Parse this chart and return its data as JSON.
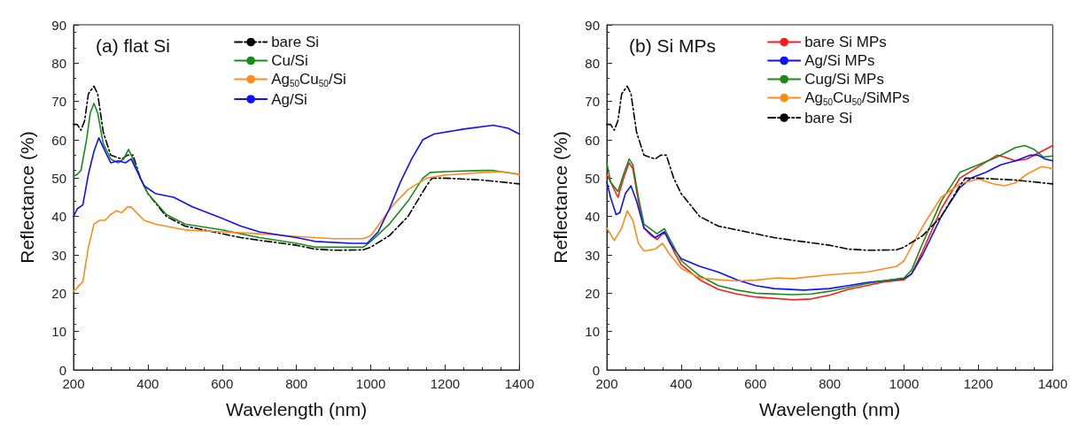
{
  "chart_data": [
    {
      "type": "line",
      "title": "(a) flat Si",
      "xlabel": "Wavelength (nm)",
      "ylabel": "Reflectance (%)",
      "xlim": [
        200,
        1400
      ],
      "xticks": [
        200,
        400,
        600,
        800,
        1000,
        1200,
        1400
      ],
      "ylim": [
        0,
        90
      ],
      "yticks": [
        0,
        10,
        20,
        30,
        40,
        50,
        60,
        70,
        80,
        90
      ],
      "grid": false,
      "legend": "top",
      "marker": "none",
      "series": [
        {
          "name": "bare Si",
          "color": "#000000",
          "line_style": "dashed",
          "x": [
            200,
            210,
            220,
            230,
            240,
            255,
            265,
            280,
            300,
            330,
            345,
            360,
            380,
            400,
            450,
            500,
            600,
            650,
            700,
            800,
            850,
            900,
            980,
            1000,
            1050,
            1100,
            1150,
            1165,
            1200,
            1300,
            1400
          ],
          "values": [
            64,
            64,
            62.5,
            65,
            72,
            74,
            72,
            62,
            56,
            55,
            56,
            56,
            50,
            46,
            40,
            37.5,
            35.5,
            34.5,
            33.8,
            32.5,
            31.5,
            31.2,
            31.3,
            32,
            35,
            40,
            48,
            50,
            50,
            49.5,
            48.5
          ]
        },
        {
          "name": "Cu/Si",
          "color": "#1a8a1a",
          "line_style": "solid",
          "x": [
            200,
            210,
            220,
            235,
            245,
            255,
            265,
            280,
            300,
            320,
            335,
            348,
            360,
            380,
            400,
            450,
            500,
            600,
            650,
            700,
            800,
            850,
            950,
            980,
            1000,
            1050,
            1100,
            1140,
            1160,
            1200,
            1300,
            1330,
            1400
          ],
          "values": [
            50.5,
            51,
            52,
            60,
            67,
            69.5,
            67,
            59,
            55,
            54,
            55,
            57.5,
            55,
            50,
            46,
            40.5,
            38,
            36.5,
            35.5,
            34.5,
            33,
            32,
            32,
            32,
            33.5,
            38,
            44,
            50,
            51.5,
            51.7,
            52,
            52,
            51
          ]
        },
        {
          "name": "Ag$_{50}$Cu$_{50}$/Si",
          "color": "#ff8c1a",
          "line_style": "solid",
          "x": [
            200,
            210,
            225,
            240,
            255,
            270,
            285,
            300,
            315,
            330,
            345,
            355,
            370,
            390,
            420,
            500,
            600,
            700,
            800,
            900,
            980,
            1000,
            1030,
            1060,
            1100,
            1150,
            1200,
            1300,
            1350,
            1400
          ],
          "values": [
            20.5,
            21.5,
            23,
            32,
            38,
            39,
            39,
            40.5,
            41.5,
            41,
            42.5,
            42.5,
            41,
            39,
            38,
            36.5,
            36,
            35.5,
            34.8,
            34.2,
            34.2,
            35,
            39,
            43,
            47,
            50,
            50.8,
            51.5,
            51.7,
            51
          ]
        },
        {
          "name": "Ag/Si",
          "color": "#1010ff",
          "line_style": "solid",
          "x": [
            200,
            210,
            225,
            240,
            255,
            268,
            280,
            300,
            320,
            340,
            355,
            370,
            390,
            420,
            470,
            520,
            600,
            650,
            700,
            800,
            850,
            950,
            990,
            1020,
            1050,
            1080,
            1110,
            1140,
            1170,
            1250,
            1330,
            1370,
            1400
          ],
          "values": [
            40,
            42,
            43,
            51,
            57,
            60.5,
            58,
            54,
            54.5,
            54,
            55,
            52,
            48,
            46,
            45,
            42.5,
            39.5,
            37.5,
            36,
            34.5,
            33.5,
            33,
            33,
            36,
            42,
            49,
            55,
            60,
            61.5,
            62.8,
            63.8,
            63,
            61.5
          ]
        }
      ]
    },
    {
      "type": "line",
      "title": "(b) Si MPs",
      "xlabel": "Wavelength (nm)",
      "ylabel": "Reflectance (%)",
      "xlim": [
        200,
        1400
      ],
      "xticks": [
        200,
        400,
        600,
        800,
        1000,
        1200,
        1400
      ],
      "ylim": [
        0,
        90
      ],
      "yticks": [
        0,
        10,
        20,
        30,
        40,
        50,
        60,
        70,
        80,
        90
      ],
      "grid": false,
      "legend": "top",
      "marker": "none",
      "series": [
        {
          "name": "bare Si MPs",
          "color": "#ff1a1a",
          "line_style": "solid",
          "x": [
            200,
            215,
            230,
            245,
            260,
            270,
            285,
            300,
            320,
            335,
            350,
            360,
            380,
            400,
            450,
            500,
            550,
            600,
            700,
            750,
            800,
            850,
            900,
            950,
            1000,
            1020,
            1050,
            1100,
            1150,
            1200,
            1250,
            1270,
            1300,
            1330,
            1360,
            1400
          ],
          "values": [
            51,
            48,
            45,
            50,
            54,
            52.5,
            44,
            37,
            35,
            34,
            35.5,
            35.5,
            31,
            27.5,
            23.5,
            21,
            19.8,
            19,
            18.3,
            18.5,
            19.5,
            21,
            22,
            23,
            23.5,
            25,
            31,
            42,
            50,
            53,
            56,
            55.5,
            54.5,
            55,
            56.5,
            58.5
          ]
        },
        {
          "name": "Ag/Si MPs",
          "color": "#1010ff",
          "line_style": "solid",
          "x": [
            200,
            210,
            225,
            235,
            250,
            265,
            280,
            300,
            330,
            355,
            370,
            400,
            450,
            500,
            550,
            600,
            650,
            730,
            800,
            850,
            900,
            1000,
            1020,
            1050,
            1100,
            1150,
            1180,
            1220,
            1260,
            1300,
            1340,
            1360,
            1380,
            1400
          ],
          "values": [
            49,
            45,
            40.5,
            41,
            46,
            48,
            44,
            37,
            34.5,
            36,
            33,
            29,
            27,
            25.5,
            23.5,
            22,
            21.2,
            20.8,
            21.2,
            22,
            22.8,
            23.8,
            25,
            30,
            40,
            47.5,
            50,
            51.5,
            53.5,
            54.5,
            56,
            56,
            55,
            54.5
          ]
        },
        {
          "name": "Cug/Si MPs",
          "color": "#1a8a1a",
          "line_style": "solid",
          "x": [
            200,
            210,
            230,
            245,
            260,
            270,
            285,
            300,
            335,
            355,
            370,
            400,
            450,
            500,
            550,
            600,
            700,
            750,
            800,
            900,
            1000,
            1020,
            1050,
            1100,
            1150,
            1200,
            1250,
            1300,
            1325,
            1350,
            1375,
            1400
          ],
          "values": [
            54,
            49,
            46.5,
            51,
            55,
            53.5,
            45,
            38,
            35.5,
            36.8,
            34,
            28.5,
            24.5,
            22,
            20.8,
            20,
            19.6,
            19.8,
            20.5,
            22.5,
            24,
            26,
            33,
            44,
            51.5,
            53.5,
            55.5,
            58,
            58.5,
            57.5,
            55.5,
            55.8
          ]
        },
        {
          "name": "Ag$_{50}$Cu$_{50}$/SiMPs",
          "color": "#ff8c1a",
          "line_style": "solid",
          "x": [
            200,
            220,
            240,
            255,
            270,
            285,
            300,
            330,
            350,
            370,
            400,
            450,
            500,
            550,
            600,
            660,
            700,
            800,
            900,
            980,
            1000,
            1030,
            1060,
            1100,
            1150,
            1200,
            1240,
            1270,
            1300,
            1330,
            1370,
            1400
          ],
          "values": [
            37,
            33.7,
            37,
            41.5,
            39,
            33,
            31,
            31.5,
            33,
            30,
            26.5,
            24,
            23.5,
            23.2,
            23.4,
            24,
            23.8,
            24.8,
            25.5,
            27,
            28.5,
            34,
            39,
            45,
            48.5,
            49.8,
            48.5,
            48,
            48.8,
            51,
            53,
            52.5
          ]
        },
        {
          "name": "bare Si",
          "color": "#000000",
          "line_style": "dashed",
          "x": [
            200,
            210,
            220,
            230,
            240,
            255,
            265,
            280,
            300,
            330,
            345,
            360,
            380,
            400,
            450,
            500,
            600,
            650,
            700,
            800,
            850,
            900,
            980,
            1000,
            1050,
            1100,
            1150,
            1165,
            1200,
            1300,
            1400
          ],
          "values": [
            64,
            64,
            62.5,
            65,
            72,
            74,
            72,
            62,
            56,
            55,
            56,
            56,
            50,
            46,
            40,
            37.5,
            35.5,
            34.5,
            33.8,
            32.5,
            31.5,
            31.2,
            31.3,
            32,
            35,
            40,
            48,
            50,
            50,
            49.5,
            48.5
          ]
        }
      ]
    }
  ]
}
